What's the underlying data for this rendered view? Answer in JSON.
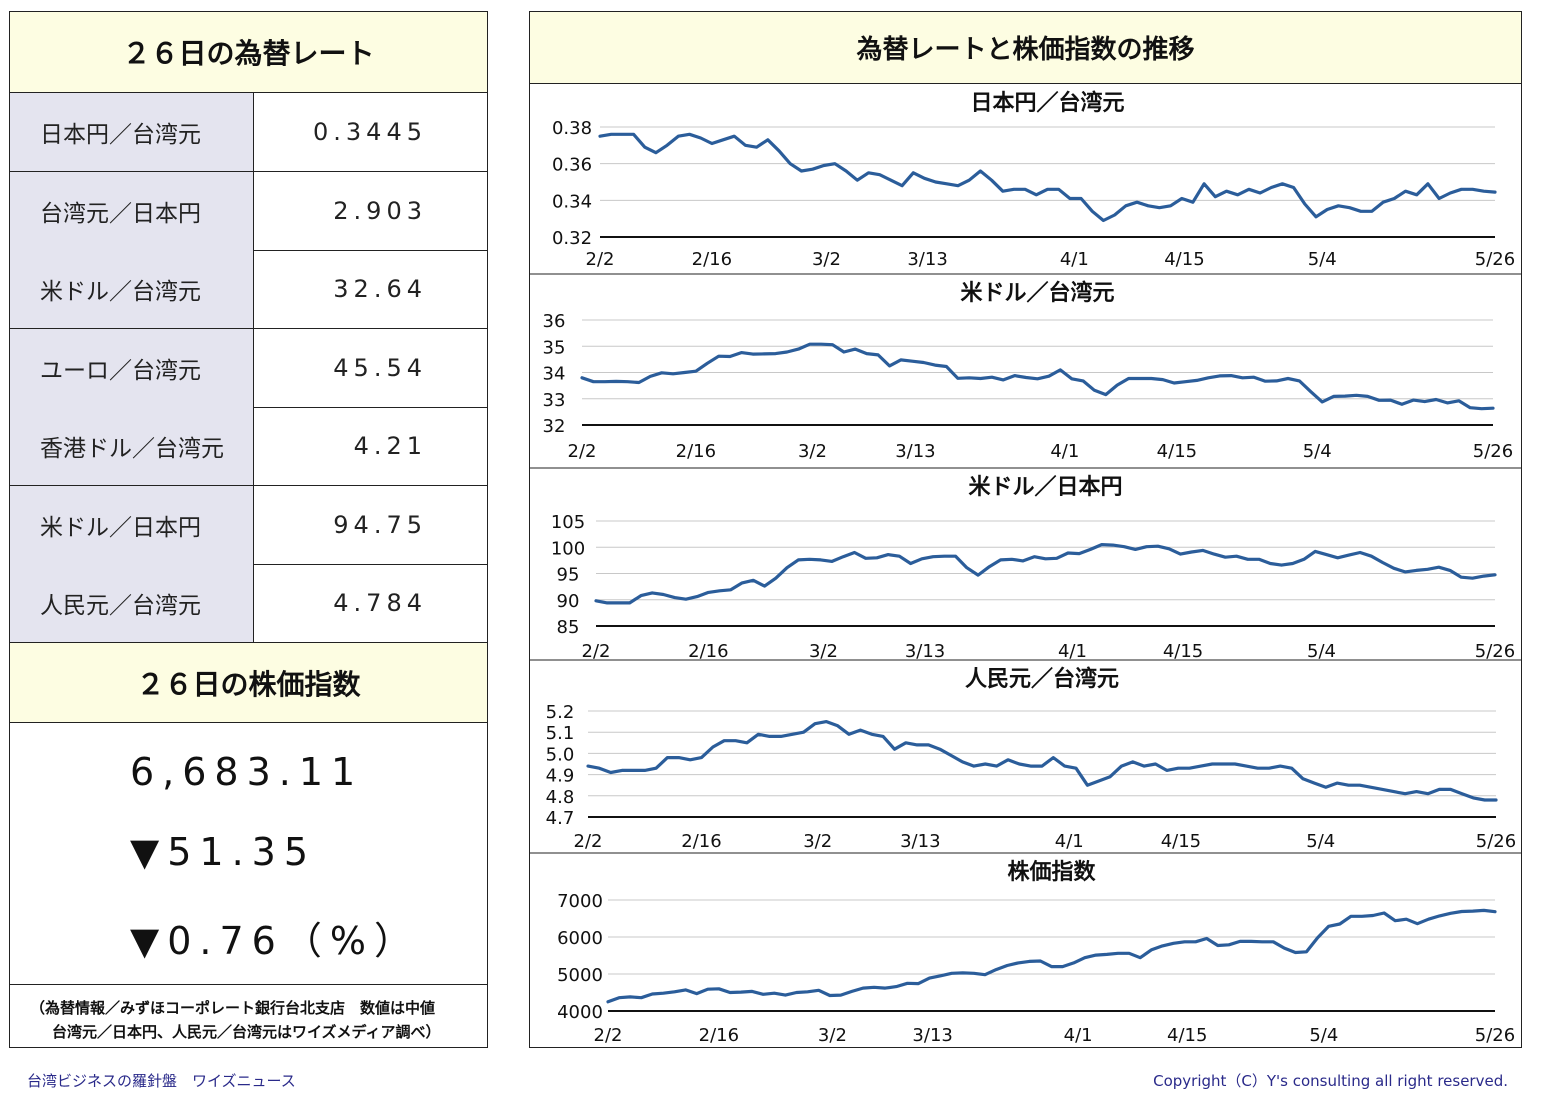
{
  "left": {
    "fx_title": "２６日の為替レート",
    "rates": [
      {
        "label": "日本円／台湾元",
        "value": "0.3445"
      },
      {
        "label": "台湾元／日本円",
        "value": "2.903"
      },
      {
        "label": "米ドル／台湾元",
        "value": "32.64"
      },
      {
        "label": "ユーロ／台湾元",
        "value": "45.54"
      },
      {
        "label": "香港ドル／台湾元",
        "value": "4.21"
      },
      {
        "label": "米ドル／日本円",
        "value": "94.75"
      },
      {
        "label": "人民元／台湾元",
        "value": "4.784"
      }
    ],
    "stock_title": "２６日の株価指数",
    "stock_value": "6,683.11",
    "stock_change": "▼51.35",
    "stock_pct": "▼0.76（%）",
    "note_line1": "（為替情報／みずほコーポレート銀行台北支店　数値は中値",
    "note_line2": "台湾元／日本円、人民元／台湾元はワイズメディア調べ）"
  },
  "right": {
    "title": "為替レートと株価指数の推移"
  },
  "footer": {
    "left": "台湾ビジネスの羅針盤　ワイズニュース",
    "right": "Copyright（C）Y's consulting all right reserved."
  },
  "chart_data": [
    {
      "type": "line",
      "title": "日本円／台湾元",
      "color": "#2b5d9a",
      "ylim": [
        0.32,
        0.38
      ],
      "yticks": [
        "0.38",
        "0.36",
        "0.34",
        "0.32"
      ],
      "ytick_values": [
        0.38,
        0.36,
        0.34,
        0.32
      ],
      "xticks": [
        "2/2",
        "2/16",
        "3/2",
        "3/13",
        "4/1",
        "4/15",
        "5/4",
        "5/26"
      ],
      "values": [
        0.375,
        0.376,
        0.376,
        0.376,
        0.369,
        0.366,
        0.37,
        0.375,
        0.376,
        0.374,
        0.371,
        0.373,
        0.375,
        0.37,
        0.369,
        0.373,
        0.367,
        0.36,
        0.356,
        0.357,
        0.359,
        0.36,
        0.356,
        0.351,
        0.355,
        0.354,
        0.351,
        0.348,
        0.355,
        0.352,
        0.35,
        0.349,
        0.348,
        0.351,
        0.356,
        0.351,
        0.345,
        0.346,
        0.346,
        0.343,
        0.346,
        0.346,
        0.341,
        0.341,
        0.334,
        0.329,
        0.332,
        0.337,
        0.339,
        0.337,
        0.336,
        0.337,
        0.341,
        0.339,
        0.349,
        0.342,
        0.345,
        0.343,
        0.346,
        0.344,
        0.347,
        0.349,
        0.347,
        0.338,
        0.331,
        0.335,
        0.337,
        0.336,
        0.334,
        0.334,
        0.339,
        0.341,
        0.345,
        0.343,
        0.349,
        0.341,
        0.344,
        0.346,
        0.346,
        0.345,
        0.3445
      ]
    },
    {
      "type": "line",
      "title": "米ドル／台湾元",
      "color": "#2b5d9a",
      "ylim": [
        32,
        36
      ],
      "yticks": [
        "36",
        "35",
        "34",
        "33",
        "32"
      ],
      "ytick_values": [
        36,
        35,
        34,
        33,
        32
      ],
      "xticks": [
        "2/2",
        "2/16",
        "3/2",
        "3/13",
        "4/1",
        "4/15",
        "5/4",
        "5/26"
      ],
      "values": [
        33.8,
        33.65,
        33.65,
        33.66,
        33.65,
        33.62,
        33.85,
        33.99,
        33.95,
        34.0,
        34.05,
        34.35,
        34.62,
        34.61,
        34.76,
        34.7,
        34.71,
        34.72,
        34.78,
        34.89,
        35.08,
        35.08,
        35.06,
        34.78,
        34.89,
        34.72,
        34.67,
        34.25,
        34.48,
        34.43,
        34.38,
        34.28,
        34.23,
        33.78,
        33.8,
        33.77,
        33.82,
        33.72,
        33.88,
        33.81,
        33.76,
        33.86,
        34.1,
        33.76,
        33.68,
        33.32,
        33.16,
        33.52,
        33.77,
        33.77,
        33.77,
        33.73,
        33.6,
        33.65,
        33.7,
        33.8,
        33.87,
        33.88,
        33.8,
        33.82,
        33.67,
        33.68,
        33.77,
        33.68,
        33.27,
        32.88,
        33.09,
        33.1,
        33.13,
        33.09,
        32.94,
        32.95,
        32.79,
        32.95,
        32.89,
        32.97,
        32.84,
        32.92,
        32.66,
        32.62,
        32.64
      ]
    },
    {
      "type": "line",
      "title": "米ドル／日本円",
      "color": "#2b5d9a",
      "ylim": [
        85,
        105
      ],
      "yticks": [
        "105",
        "100",
        "95",
        "90",
        "85"
      ],
      "ytick_values": [
        105,
        100,
        95,
        90,
        85
      ],
      "xticks": [
        "2/2",
        "2/16",
        "3/2",
        "3/13",
        "4/1",
        "4/15",
        "5/4",
        "5/26"
      ],
      "values": [
        89.8,
        89.4,
        89.4,
        89.4,
        90.8,
        91.3,
        91.0,
        90.4,
        90.1,
        90.6,
        91.4,
        91.7,
        91.9,
        93.2,
        93.7,
        92.6,
        94.1,
        96.1,
        97.6,
        97.7,
        97.6,
        97.3,
        98.2,
        99.0,
        97.9,
        98.0,
        98.6,
        98.3,
        96.9,
        97.8,
        98.2,
        98.3,
        98.3,
        96.1,
        94.7,
        96.3,
        97.6,
        97.7,
        97.4,
        98.2,
        97.8,
        97.9,
        98.9,
        98.8,
        99.6,
        100.5,
        100.4,
        100.1,
        99.6,
        100.1,
        100.2,
        99.7,
        98.7,
        99.1,
        99.4,
        98.7,
        98.1,
        98.3,
        97.7,
        97.7,
        96.9,
        96.6,
        96.9,
        97.7,
        99.2,
        98.6,
        98.0,
        98.5,
        99.0,
        98.3,
        97.1,
        96.0,
        95.3,
        95.6,
        95.8,
        96.2,
        95.6,
        94.3,
        94.1,
        94.5,
        94.75
      ]
    },
    {
      "type": "line",
      "title": "人民元／台湾元",
      "color": "#2b5d9a",
      "ylim": [
        4.7,
        5.2
      ],
      "yticks": [
        "5.2",
        "5.1",
        "5.0",
        "4.9",
        "4.8",
        "4.7"
      ],
      "ytick_values": [
        5.2,
        5.1,
        5.0,
        4.9,
        4.8,
        4.7
      ],
      "xticks": [
        "2/2",
        "2/16",
        "3/2",
        "3/13",
        "4/1",
        "4/15",
        "5/4",
        "5/26"
      ],
      "values": [
        4.94,
        4.93,
        4.91,
        4.92,
        4.92,
        4.92,
        4.93,
        4.98,
        4.98,
        4.97,
        4.98,
        5.03,
        5.06,
        5.06,
        5.05,
        5.09,
        5.08,
        5.08,
        5.09,
        5.1,
        5.14,
        5.15,
        5.13,
        5.09,
        5.11,
        5.09,
        5.08,
        5.02,
        5.05,
        5.04,
        5.04,
        5.02,
        4.99,
        4.96,
        4.94,
        4.95,
        4.94,
        4.97,
        4.95,
        4.94,
        4.94,
        4.98,
        4.94,
        4.93,
        4.85,
        4.87,
        4.89,
        4.94,
        4.96,
        4.94,
        4.95,
        4.92,
        4.93,
        4.93,
        4.94,
        4.95,
        4.95,
        4.95,
        4.94,
        4.93,
        4.93,
        4.94,
        4.93,
        4.88,
        4.86,
        4.84,
        4.86,
        4.85,
        4.85,
        4.84,
        4.83,
        4.82,
        4.81,
        4.82,
        4.81,
        4.83,
        4.83,
        4.81,
        4.79,
        4.78,
        4.78
      ]
    },
    {
      "type": "line",
      "title": "株価指数",
      "color": "#2b5d9a",
      "ylim": [
        4000,
        7000
      ],
      "yticks": [
        "7000",
        "6000",
        "5000",
        "4000"
      ],
      "ytick_values": [
        7000,
        6000,
        5000,
        4000
      ],
      "xticks": [
        "2/2",
        "2/16",
        "3/2",
        "3/13",
        "4/1",
        "4/15",
        "5/4",
        "5/26"
      ],
      "values": [
        4250,
        4360,
        4380,
        4360,
        4460,
        4480,
        4520,
        4570,
        4470,
        4590,
        4600,
        4500,
        4510,
        4530,
        4450,
        4480,
        4430,
        4500,
        4520,
        4560,
        4420,
        4430,
        4530,
        4620,
        4640,
        4620,
        4660,
        4750,
        4740,
        4890,
        4950,
        5020,
        5030,
        5020,
        4980,
        5120,
        5230,
        5300,
        5340,
        5350,
        5200,
        5200,
        5300,
        5440,
        5510,
        5530,
        5560,
        5560,
        5440,
        5650,
        5760,
        5830,
        5870,
        5870,
        5960,
        5770,
        5790,
        5880,
        5880,
        5870,
        5870,
        5700,
        5580,
        5600,
        5980,
        6290,
        6350,
        6560,
        6560,
        6580,
        6650,
        6440,
        6480,
        6360,
        6480,
        6570,
        6640,
        6690,
        6700,
        6720,
        6683
      ]
    }
  ]
}
